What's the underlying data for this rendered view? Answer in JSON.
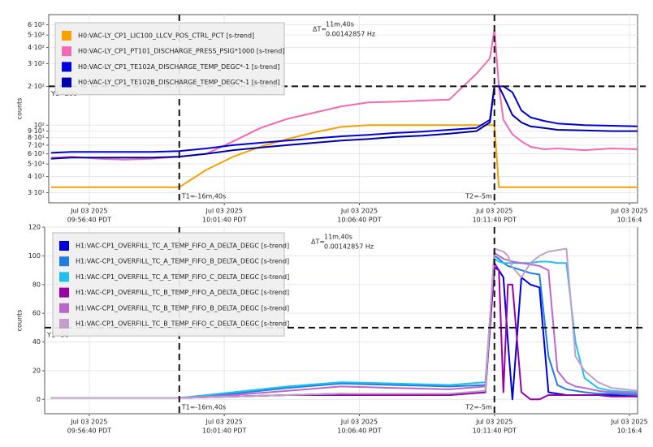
{
  "chart_data": [
    {
      "type": "line",
      "y_label": "counts",
      "log_y": true,
      "grid": true,
      "xlim": [
        "09:55:10",
        "10:16:58"
      ],
      "ylim": [
        25,
        720
      ],
      "xticks": [
        {
          "value": "09:56:40",
          "label": [
            "Jul 03 2025",
            "09:56:40 PDT"
          ]
        },
        {
          "value": "10:01:40",
          "label": [
            "Jul 03 2025",
            "10:01:40 PDT"
          ]
        },
        {
          "value": "10:06:40",
          "label": [
            "Jul 03 2025",
            "10:06:40 PDT"
          ]
        },
        {
          "value": "10:11:40",
          "label": [
            "Jul 03 2025",
            "10:11:40 PDT"
          ]
        },
        {
          "value": "10:16:40",
          "label": [
            "Jul 03 2025",
            "10:16:4"
          ]
        }
      ],
      "yticks": [
        {
          "value": 30,
          "label": "3·10¹"
        },
        {
          "value": 40,
          "label": "4·10¹"
        },
        {
          "value": 50,
          "label": "5·10¹"
        },
        {
          "value": 60,
          "label": "6·10¹"
        },
        {
          "value": 70,
          "label": "7·10¹"
        },
        {
          "value": 80,
          "label": "8·10¹"
        },
        {
          "value": 90,
          "label": "9·10¹"
        },
        {
          "value": 100,
          "label": "10²"
        },
        {
          "value": 200,
          "label": "2·10²"
        },
        {
          "value": 300,
          "label": "3·10²"
        },
        {
          "value": 400,
          "label": "4·10²"
        },
        {
          "value": 500,
          "label": "5·10²"
        },
        {
          "value": 600,
          "label": "6·10²"
        }
      ],
      "cursor_y": 200,
      "cursor_t1": "10:00:00",
      "cursor_t2": "10:11:40",
      "annotations": {
        "y1": "Y1=200",
        "t1": "T1=-16m,40s",
        "t2": "T2=-5m",
        "dt_label": "ΔT=",
        "dt": "11m,40s",
        "hz": "0.00142857 Hz"
      },
      "x": [
        "09:55:15",
        "09:56:00",
        "09:57:00",
        "09:58:00",
        "09:59:00",
        "10:00:00",
        "10:01:00",
        "10:02:00",
        "10:03:00",
        "10:04:00",
        "10:05:00",
        "10:06:00",
        "10:07:00",
        "10:08:00",
        "10:09:00",
        "10:10:00",
        "10:11:00",
        "10:11:30",
        "10:11:40",
        "10:11:50",
        "10:12:00",
        "10:12:20",
        "10:12:40",
        "10:13:00",
        "10:13:30",
        "10:14:00",
        "10:15:00",
        "10:16:00",
        "10:16:58"
      ],
      "series": [
        {
          "name": "H0:VAC-LY_CP1_LIC100_LLCV_POS_CTRL_PCT [s-trend]",
          "color": "#f5a100",
          "values": [
            33,
            33,
            33,
            33,
            33,
            33,
            45,
            57,
            68,
            78,
            88,
            97,
            100,
            100,
            100,
            100,
            100,
            100,
            100,
            33,
            33,
            33,
            33,
            33,
            33,
            33,
            33,
            33,
            33
          ]
        },
        {
          "name": "H0:VAC-LY_CP1_PT101_DISCHARGE_PRESS_PSIG*1000 [s-trend]",
          "color": "#f06ab4",
          "values": [
            56,
            57,
            55,
            54,
            55,
            57,
            60,
            75,
            95,
            112,
            125,
            140,
            150,
            152,
            155,
            158,
            250,
            330,
            550,
            200,
            110,
            85,
            75,
            68,
            65,
            66,
            64,
            66,
            65
          ]
        },
        {
          "name": "H0:VAC-LY_CP1_TE102A_DISCHARGE_TEMP_DEGC*-1 [s-trend]",
          "color": "#0000dd",
          "values": [
            61,
            62,
            62,
            62,
            62,
            63,
            66,
            70,
            73,
            76,
            79,
            82,
            84,
            87,
            89,
            92,
            95,
            110,
            200,
            200,
            200,
            180,
            130,
            115,
            108,
            103,
            100,
            99,
            98
          ]
        },
        {
          "name": "H0:VAC-LY_CP1_TE102B_DISCHARGE_TEMP_DEGC*-1 [s-trend]",
          "color": "#0000aa",
          "values": [
            55,
            56,
            56,
            56,
            56,
            57,
            60,
            64,
            67,
            70,
            73,
            76,
            78,
            81,
            83,
            86,
            90,
            105,
            200,
            200,
            170,
            120,
            105,
            98,
            95,
            92,
            91,
            90,
            90
          ]
        }
      ]
    },
    {
      "type": "line",
      "y_label": "counts",
      "log_y": false,
      "grid": true,
      "xlim": [
        "09:55:01",
        "10:16:58"
      ],
      "ylim": [
        -10,
        120
      ],
      "xticks": [
        {
          "value": "09:56:40",
          "label": [
            "Jul 03 2025",
            "09:56:40 PDT"
          ]
        },
        {
          "value": "10:01:40",
          "label": [
            "Jul 03 2025",
            "10:01:40 PDT"
          ]
        },
        {
          "value": "10:06:40",
          "label": [
            "Jul 03 2025",
            "10:06:40 PDT"
          ]
        },
        {
          "value": "10:11:40",
          "label": [
            "Jul 03 2025",
            "10:11:40 PDT"
          ]
        },
        {
          "value": "10:16:40",
          "label": [
            "Jul 03 2025",
            "10:16:4"
          ]
        }
      ],
      "yticks": [
        0,
        20,
        40,
        60,
        80,
        100,
        120
      ],
      "cursor_y": 50,
      "cursor_t1": "10:00:00",
      "cursor_t2": "10:11:40",
      "annotations": {
        "y1": "Y1=50",
        "t1": "T1=-16m,40s",
        "t2": "T2=-5m",
        "dt_label": "ΔT=",
        "dt": "11m,40s",
        "hz": "0.00142857 Hz"
      },
      "x": [
        "09:55:15",
        "09:58:00",
        "10:00:00",
        "10:02:00",
        "10:04:00",
        "10:06:00",
        "10:08:00",
        "10:10:00",
        "10:11:20",
        "10:11:40",
        "10:11:50",
        "10:12:00",
        "10:12:10",
        "10:12:20",
        "10:12:40",
        "10:13:00",
        "10:13:20",
        "10:13:40",
        "10:14:00",
        "10:14:20",
        "10:14:40",
        "10:15:00",
        "10:15:30",
        "10:16:00",
        "10:16:58"
      ],
      "series": [
        {
          "name": "H1:VAC-CP1_OVERFILL_TC_A_TEMP_FIFO_A_DELTA_DEGC [s-trend]",
          "color": "#0000dd",
          "values": [
            1,
            1,
            1,
            2,
            3,
            4,
            3,
            3,
            5,
            92,
            90,
            85,
            40,
            0,
            85,
            80,
            78,
            5,
            4,
            3,
            3,
            3,
            3,
            3,
            2
          ]
        },
        {
          "name": "H1:VAC-CP1_OVERFILL_TC_A_TEMP_FIFO_B_DELTA_DEGC [s-trend]",
          "color": "#1e7fe0",
          "values": [
            1,
            1,
            1,
            4,
            8,
            11,
            10,
            9,
            10,
            100,
            98,
            95,
            93,
            92,
            90,
            88,
            87,
            30,
            10,
            7,
            6,
            5,
            4,
            4,
            3
          ]
        },
        {
          "name": "H1:VAC-CP1_OVERFILL_TC_A_TEMP_FIFO_C_DELTA_DEGC [s-trend]",
          "color": "#1ec0f0",
          "values": [
            1,
            1,
            1,
            5,
            9,
            12,
            11,
            10,
            12,
            98,
            96,
            95,
            95,
            95,
            95,
            95,
            96,
            96,
            95,
            95,
            40,
            15,
            8,
            6,
            5
          ]
        },
        {
          "name": "H1:VAC-CP1_OVERFILL_TC_B_TEMP_FIFO_A_DELTA_DEGC [s-trend]",
          "color": "#9900aa",
          "values": [
            1,
            1,
            1,
            2,
            3,
            3,
            3,
            3,
            5,
            95,
            90,
            5,
            80,
            80,
            5,
            0,
            0,
            3,
            3,
            3,
            3,
            3,
            3,
            2,
            2
          ]
        },
        {
          "name": "H1:VAC-CP1_OVERFILL_TC_B_TEMP_FIFO_B_DELTA_DEGC [s-trend]",
          "color": "#bb66cc",
          "values": [
            1,
            1,
            1,
            3,
            6,
            9,
            8,
            7,
            9,
            102,
            100,
            98,
            97,
            96,
            95,
            94,
            93,
            90,
            20,
            12,
            9,
            8,
            6,
            5,
            4
          ]
        },
        {
          "name": "H1:VAC-CP1_OVERFILL_TC_B_TEMP_FIFO_C_DELTA_DEGC [s-trend]",
          "color": "#c0a0c8",
          "values": [
            1,
            1,
            1,
            2,
            3,
            4,
            4,
            4,
            6,
            105,
            104,
            103,
            100,
            92,
            85,
            95,
            100,
            103,
            104,
            105,
            30,
            20,
            12,
            8,
            6
          ]
        }
      ]
    }
  ]
}
